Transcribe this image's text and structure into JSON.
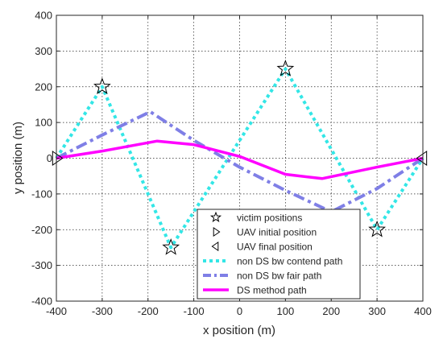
{
  "chart_data": {
    "type": "line",
    "xlabel": "x position (m)",
    "ylabel": "y position (m)",
    "xlim": [
      -400,
      400
    ],
    "ylim": [
      -400,
      400
    ],
    "xticks": [
      -400,
      -300,
      -200,
      -100,
      0,
      100,
      200,
      300,
      400
    ],
    "yticks": [
      -400,
      -300,
      -200,
      -100,
      0,
      100,
      200,
      300,
      400
    ],
    "grid": true,
    "legend_position": "bottom-center",
    "series": [
      {
        "name": "victim positions",
        "kind": "marker",
        "marker": "star",
        "color": "#000000",
        "x": [
          -300,
          -150,
          100,
          300
        ],
        "y": [
          200,
          -250,
          250,
          -200
        ]
      },
      {
        "name": "UAV initial position",
        "kind": "marker",
        "marker": "triangle-right",
        "color": "#000000",
        "x": [
          -400
        ],
        "y": [
          0
        ]
      },
      {
        "name": "UAV final position",
        "kind": "marker",
        "marker": "triangle-left",
        "color": "#000000",
        "x": [
          400
        ],
        "y": [
          0
        ]
      },
      {
        "name": "non DS bw contend path",
        "kind": "line",
        "style": "dotted",
        "color": "#33e6e6",
        "x": [
          -400,
          -300,
          -150,
          100,
          300,
          400
        ],
        "y": [
          0,
          200,
          -250,
          250,
          -200,
          0
        ]
      },
      {
        "name": "non DS bw fair path",
        "kind": "line",
        "style": "dashdot",
        "color": "#7f7fe6",
        "x": [
          -400,
          -300,
          -195,
          -100,
          0,
          100,
          200,
          300,
          400
        ],
        "y": [
          0,
          65,
          130,
          50,
          -25,
          -90,
          -150,
          -85,
          0
        ]
      },
      {
        "name": "DS method path",
        "kind": "line",
        "style": "solid",
        "color": "#ff00ff",
        "x": [
          -400,
          -300,
          -180,
          -100,
          0,
          100,
          180,
          300,
          400
        ],
        "y": [
          0,
          20,
          48,
          38,
          5,
          -45,
          -57,
          -25,
          0
        ]
      }
    ]
  }
}
